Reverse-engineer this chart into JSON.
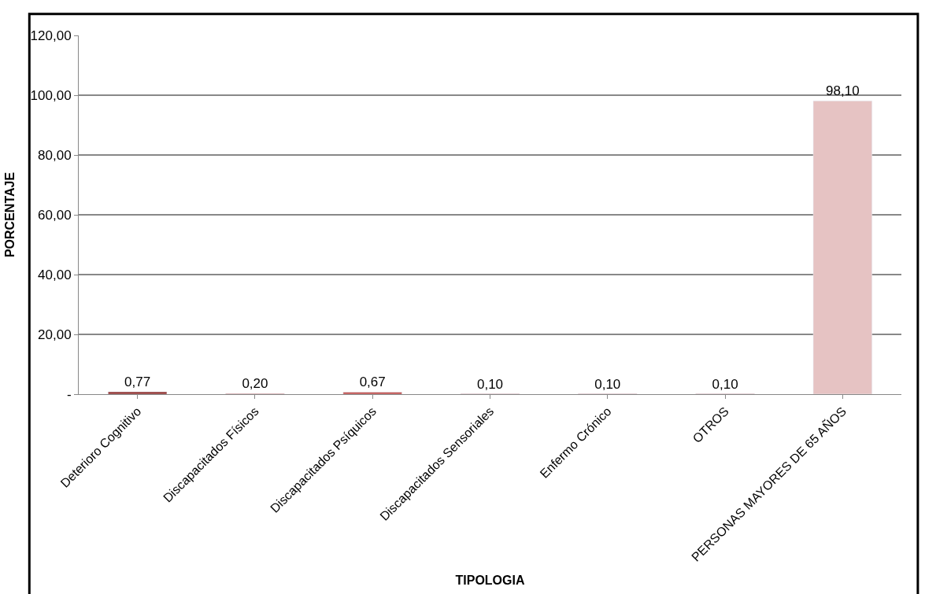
{
  "chart_data": {
    "type": "bar",
    "xlabel": "TIPOLOGIA",
    "ylabel": "PORCENTAJE",
    "categories": [
      "Deterioro Cognitivo",
      "Discapacitados Físicos",
      "Discapacitados Psíquicos",
      "Discapacitados Sensoriales",
      "Enfermo Crónico",
      "OTROS",
      "PERSONAS MAYORES DE 65 AÑOS"
    ],
    "values": [
      0.77,
      0.2,
      0.67,
      0.1,
      0.1,
      0.1,
      98.1
    ],
    "value_labels": [
      "0,77",
      "0,20",
      "0,67",
      "0,10",
      "0,10",
      "0,10",
      "98,10"
    ],
    "colors": [
      "#943634",
      "#c0504d",
      "#c0504d",
      "#c0504d",
      "#c0504d",
      "#c0504d",
      "#e6c3c3"
    ],
    "ylim": [
      0,
      120
    ],
    "yticks": [
      {
        "value": 0,
        "label": "-"
      },
      {
        "value": 20,
        "label": "20,00"
      },
      {
        "value": 40,
        "label": "40,00"
      },
      {
        "value": 60,
        "label": "60,00"
      },
      {
        "value": 80,
        "label": "80,00"
      },
      {
        "value": 100,
        "label": "100,00"
      },
      {
        "value": 120,
        "label": "120,00"
      }
    ],
    "grid": "y",
    "legend": false
  }
}
